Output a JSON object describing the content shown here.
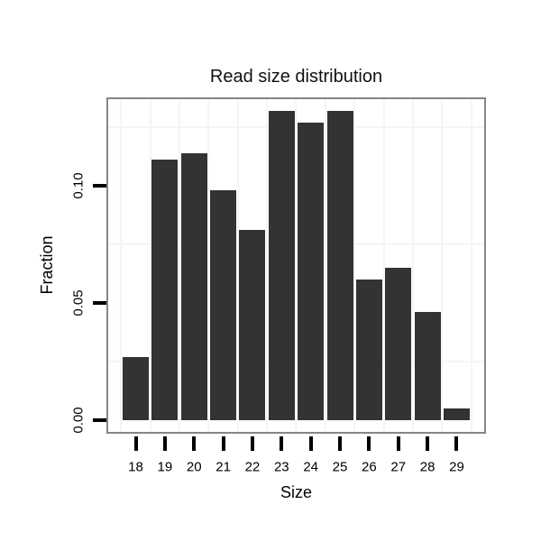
{
  "chart_data": {
    "type": "bar",
    "title": "Read size distribution",
    "xlabel": "Size",
    "ylabel": "Fraction",
    "categories": [
      "18",
      "19",
      "20",
      "21",
      "22",
      "23",
      "24",
      "25",
      "26",
      "27",
      "28",
      "29"
    ],
    "values": [
      0.027,
      0.111,
      0.114,
      0.098,
      0.081,
      0.132,
      0.127,
      0.132,
      0.06,
      0.065,
      0.046,
      0.005
    ],
    "ylim": [
      -0.006,
      0.138
    ],
    "yticks": [
      0,
      0.05,
      0.1
    ],
    "ytick_labels": [
      "0.00",
      "0.05",
      "0.10"
    ],
    "y_minor_gridlines": [
      0.025,
      0.075,
      0.125
    ],
    "grid": "minor gridlines only, very light; vertical minors between categories",
    "legend": "none",
    "bar_color": "#333333",
    "panel_border_color": "#868686",
    "gridline_color": "#f5f5f5",
    "tick_color": "#000000",
    "text_color": "#000000",
    "background_color": "#ffffff"
  }
}
